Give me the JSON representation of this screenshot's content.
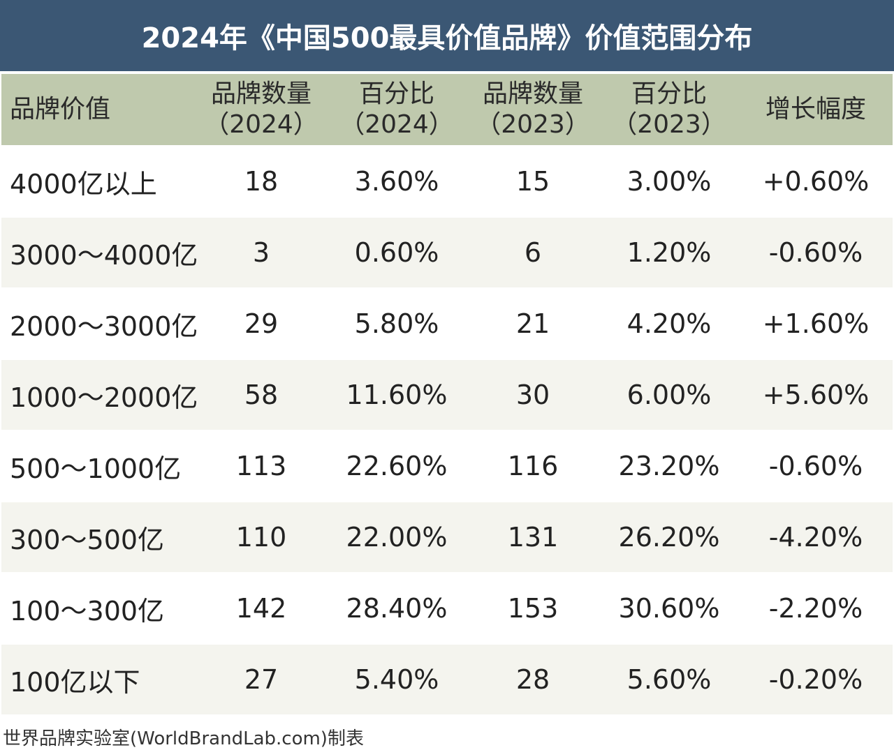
{
  "title": "2024年《中国500最具价值品牌》价值范围分布",
  "table": {
    "header": [
      [
        "品牌价值"
      ],
      [
        "品牌数量",
        "（2024）"
      ],
      [
        "百分比",
        "（2024）"
      ],
      [
        "品牌数量",
        "（2023）"
      ],
      [
        "百分比",
        "（2023）"
      ],
      [
        "增长幅度"
      ]
    ],
    "rows": [
      [
        "4000亿以上",
        "18",
        "3.60%",
        "15",
        "3.00%",
        "+0.60%"
      ],
      [
        "3000～4000亿",
        "3",
        "0.60%",
        "6",
        "1.20%",
        "-0.60%"
      ],
      [
        "2000～3000亿",
        "29",
        "5.80%",
        "21",
        "4.20%",
        "+1.60%"
      ],
      [
        "1000～2000亿",
        "58",
        "11.60%",
        "30",
        "6.00%",
        "+5.60%"
      ],
      [
        "500～1000亿",
        "113",
        "22.60%",
        "116",
        "23.20%",
        "-0.60%"
      ],
      [
        "300～500亿",
        "110",
        "22.00%",
        "131",
        "26.20%",
        "-4.20%"
      ],
      [
        "100～300亿",
        "142",
        "28.40%",
        "153",
        "30.60%",
        "-2.20%"
      ],
      [
        "100亿以下",
        "27",
        "5.40%",
        "28",
        "5.60%",
        "-0.20%"
      ]
    ]
  },
  "footer": "世界品牌实验室(WorldBrandLab.com)制表"
}
